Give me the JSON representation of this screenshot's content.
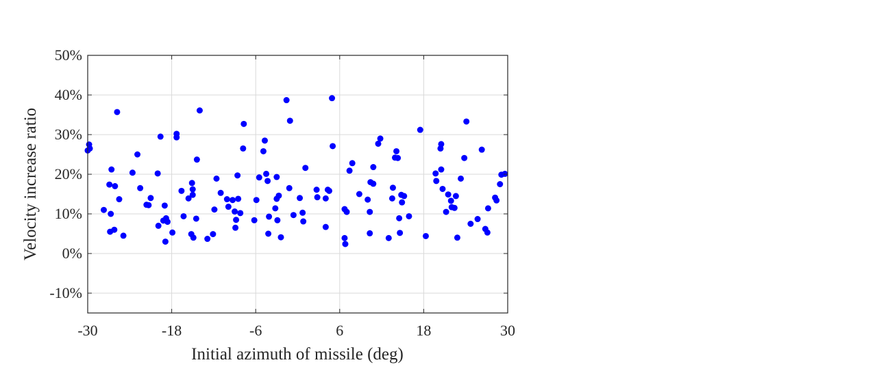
{
  "chart_data": {
    "type": "scatter",
    "xlabel": "Initial azimuth of missile (deg)",
    "ylabel": "Velocity increase ratio",
    "xlim": [
      -30,
      30
    ],
    "ylim": [
      -15,
      50
    ],
    "x_ticks": [
      -30,
      -18,
      -6,
      6,
      18,
      30
    ],
    "x_tick_labels": [
      "-30",
      "-18",
      "-6",
      "6",
      "18",
      "30"
    ],
    "y_ticks": [
      -10,
      0,
      10,
      20,
      30,
      40,
      50
    ],
    "y_tick_labels": [
      "-10%",
      "0%",
      "10%",
      "20%",
      "30%",
      "40%",
      "50%"
    ],
    "grid": true,
    "marker_color": "#0000ff",
    "points": [
      {
        "x": -30.0,
        "y": 26.0
      },
      {
        "x": -29.8,
        "y": 27.5
      },
      {
        "x": -29.7,
        "y": 26.5
      },
      {
        "x": -27.7,
        "y": 11.0
      },
      {
        "x": -26.9,
        "y": 17.4
      },
      {
        "x": -26.8,
        "y": 5.5
      },
      {
        "x": -26.7,
        "y": 10.0
      },
      {
        "x": -26.6,
        "y": 21.2
      },
      {
        "x": -26.2,
        "y": 6.0
      },
      {
        "x": -26.1,
        "y": 17.0
      },
      {
        "x": -25.8,
        "y": 35.7
      },
      {
        "x": -25.5,
        "y": 13.7
      },
      {
        "x": -24.9,
        "y": 4.5
      },
      {
        "x": -23.6,
        "y": 20.4
      },
      {
        "x": -22.9,
        "y": 25.0
      },
      {
        "x": -22.5,
        "y": 16.5
      },
      {
        "x": -21.6,
        "y": 12.3
      },
      {
        "x": -21.3,
        "y": 12.2
      },
      {
        "x": -21.0,
        "y": 14.0
      },
      {
        "x": -20.0,
        "y": 20.2
      },
      {
        "x": -19.9,
        "y": 7.0
      },
      {
        "x": -19.6,
        "y": 29.5
      },
      {
        "x": -19.2,
        "y": 8.3
      },
      {
        "x": -19.0,
        "y": 12.1
      },
      {
        "x": -18.9,
        "y": 3.0
      },
      {
        "x": -18.8,
        "y": 8.9
      },
      {
        "x": -18.6,
        "y": 8.0
      },
      {
        "x": -17.9,
        "y": 5.3
      },
      {
        "x": -17.3,
        "y": 30.2
      },
      {
        "x": -17.3,
        "y": 29.3
      },
      {
        "x": -16.6,
        "y": 15.8
      },
      {
        "x": -16.3,
        "y": 9.4
      },
      {
        "x": -15.6,
        "y": 13.9
      },
      {
        "x": -15.2,
        "y": 4.9
      },
      {
        "x": -15.1,
        "y": 17.8
      },
      {
        "x": -15.0,
        "y": 14.8
      },
      {
        "x": -15.0,
        "y": 16.2
      },
      {
        "x": -14.9,
        "y": 4.0
      },
      {
        "x": -14.5,
        "y": 8.8
      },
      {
        "x": -14.4,
        "y": 23.7
      },
      {
        "x": -14.0,
        "y": 36.1
      },
      {
        "x": -12.9,
        "y": 3.7
      },
      {
        "x": -12.1,
        "y": 4.9
      },
      {
        "x": -11.9,
        "y": 11.1
      },
      {
        "x": -11.6,
        "y": 18.9
      },
      {
        "x": -11.0,
        "y": 15.3
      },
      {
        "x": -10.1,
        "y": 13.7
      },
      {
        "x": -9.9,
        "y": 11.8
      },
      {
        "x": -9.3,
        "y": 13.5
      },
      {
        "x": -9.0,
        "y": 10.6
      },
      {
        "x": -8.9,
        "y": 6.5
      },
      {
        "x": -8.8,
        "y": 8.5
      },
      {
        "x": -8.6,
        "y": 19.7
      },
      {
        "x": -8.5,
        "y": 13.8
      },
      {
        "x": -8.2,
        "y": 10.2
      },
      {
        "x": -7.8,
        "y": 26.5
      },
      {
        "x": -7.7,
        "y": 32.7
      },
      {
        "x": -6.2,
        "y": 8.4
      },
      {
        "x": -5.9,
        "y": 13.5
      },
      {
        "x": -5.5,
        "y": 19.2
      },
      {
        "x": -4.9,
        "y": 25.8
      },
      {
        "x": -4.7,
        "y": 28.5
      },
      {
        "x": -4.5,
        "y": 20.1
      },
      {
        "x": -4.3,
        "y": 18.3
      },
      {
        "x": -4.1,
        "y": 9.3
      },
      {
        "x": -4.2,
        "y": 5.0
      },
      {
        "x": -3.2,
        "y": 11.4
      },
      {
        "x": -3.0,
        "y": 19.3
      },
      {
        "x": -3.0,
        "y": 13.8
      },
      {
        "x": -2.9,
        "y": 8.4
      },
      {
        "x": -2.7,
        "y": 14.6
      },
      {
        "x": -2.4,
        "y": 4.1
      },
      {
        "x": -1.6,
        "y": 38.7
      },
      {
        "x": -1.2,
        "y": 16.5
      },
      {
        "x": -1.1,
        "y": 33.5
      },
      {
        "x": -0.6,
        "y": 9.7
      },
      {
        "x": 0.3,
        "y": 14.0
      },
      {
        "x": 0.7,
        "y": 10.3
      },
      {
        "x": 0.8,
        "y": 8.1
      },
      {
        "x": 1.1,
        "y": 21.6
      },
      {
        "x": 2.7,
        "y": 16.1
      },
      {
        "x": 2.8,
        "y": 14.2
      },
      {
        "x": 4.0,
        "y": 6.7
      },
      {
        "x": 4.0,
        "y": 13.9
      },
      {
        "x": 4.3,
        "y": 16.1
      },
      {
        "x": 4.5,
        "y": 15.8
      },
      {
        "x": 4.9,
        "y": 39.2
      },
      {
        "x": 5.0,
        "y": 27.1
      },
      {
        "x": 6.7,
        "y": 11.2
      },
      {
        "x": 6.7,
        "y": 3.9
      },
      {
        "x": 6.8,
        "y": 2.4
      },
      {
        "x": 7.0,
        "y": 10.5
      },
      {
        "x": 7.4,
        "y": 20.9
      },
      {
        "x": 7.8,
        "y": 22.8
      },
      {
        "x": 8.8,
        "y": 15.0
      },
      {
        "x": 10.0,
        "y": 13.6
      },
      {
        "x": 10.3,
        "y": 5.1
      },
      {
        "x": 10.3,
        "y": 10.5
      },
      {
        "x": 10.4,
        "y": 18.0
      },
      {
        "x": 10.8,
        "y": 17.6
      },
      {
        "x": 10.8,
        "y": 21.8
      },
      {
        "x": 11.5,
        "y": 27.7
      },
      {
        "x": 11.8,
        "y": 29.0
      },
      {
        "x": 13.0,
        "y": 3.9
      },
      {
        "x": 13.5,
        "y": 13.9
      },
      {
        "x": 13.6,
        "y": 16.6
      },
      {
        "x": 13.9,
        "y": 24.2
      },
      {
        "x": 14.1,
        "y": 25.8
      },
      {
        "x": 14.3,
        "y": 24.1
      },
      {
        "x": 14.5,
        "y": 8.9
      },
      {
        "x": 14.6,
        "y": 5.2
      },
      {
        "x": 14.8,
        "y": 14.8
      },
      {
        "x": 14.9,
        "y": 12.9
      },
      {
        "x": 15.2,
        "y": 14.5
      },
      {
        "x": 15.9,
        "y": 9.4
      },
      {
        "x": 17.5,
        "y": 31.2
      },
      {
        "x": 18.3,
        "y": 4.4
      },
      {
        "x": 19.7,
        "y": 20.2
      },
      {
        "x": 19.8,
        "y": 18.3
      },
      {
        "x": 20.4,
        "y": 26.5
      },
      {
        "x": 20.5,
        "y": 27.6
      },
      {
        "x": 20.5,
        "y": 21.2
      },
      {
        "x": 20.7,
        "y": 16.3
      },
      {
        "x": 21.2,
        "y": 10.5
      },
      {
        "x": 21.5,
        "y": 14.9
      },
      {
        "x": 21.9,
        "y": 13.3
      },
      {
        "x": 22.0,
        "y": 11.7
      },
      {
        "x": 22.4,
        "y": 11.5
      },
      {
        "x": 22.6,
        "y": 14.5
      },
      {
        "x": 22.8,
        "y": 4.0
      },
      {
        "x": 23.3,
        "y": 18.9
      },
      {
        "x": 23.8,
        "y": 24.1
      },
      {
        "x": 24.1,
        "y": 33.3
      },
      {
        "x": 24.7,
        "y": 7.5
      },
      {
        "x": 25.7,
        "y": 8.7
      },
      {
        "x": 26.3,
        "y": 26.2
      },
      {
        "x": 26.8,
        "y": 6.2
      },
      {
        "x": 27.1,
        "y": 5.3
      },
      {
        "x": 27.2,
        "y": 11.4
      },
      {
        "x": 28.2,
        "y": 14.1
      },
      {
        "x": 28.4,
        "y": 13.4
      },
      {
        "x": 28.9,
        "y": 17.5
      },
      {
        "x": 29.1,
        "y": 19.9
      },
      {
        "x": 29.6,
        "y": 20.1
      }
    ]
  }
}
